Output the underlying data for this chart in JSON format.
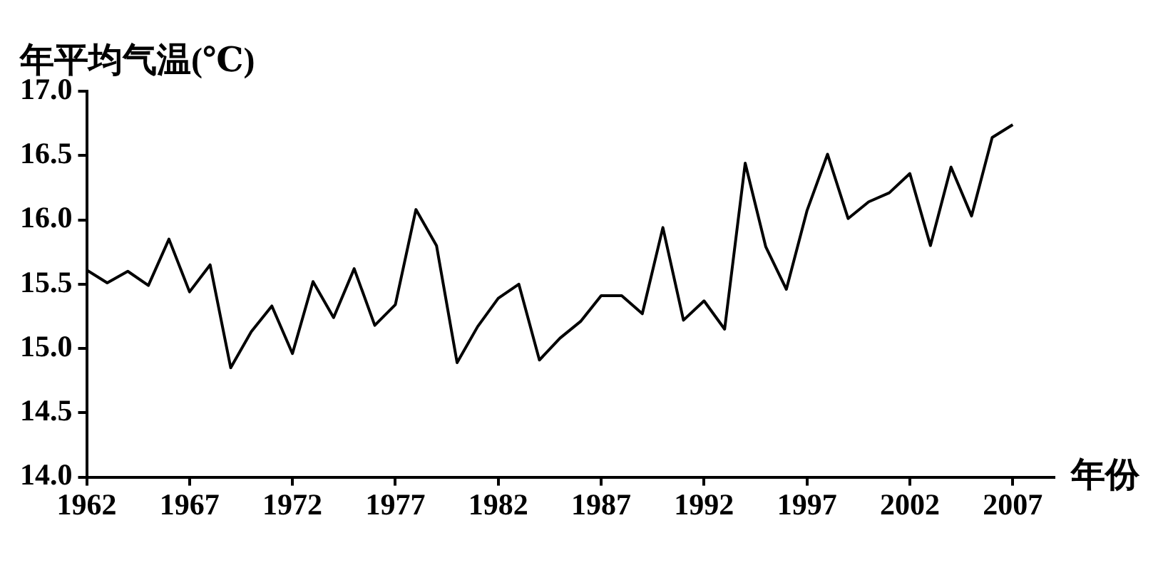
{
  "chart_data": {
    "type": "line",
    "xlabel": "年份",
    "ylabel": "年平均气温(℃)",
    "x": [
      1962,
      1963,
      1964,
      1965,
      1966,
      1967,
      1968,
      1969,
      1970,
      1971,
      1972,
      1973,
      1974,
      1975,
      1976,
      1977,
      1978,
      1979,
      1980,
      1981,
      1982,
      1983,
      1984,
      1985,
      1986,
      1987,
      1988,
      1989,
      1990,
      1991,
      1992,
      1993,
      1994,
      1995,
      1996,
      1997,
      1998,
      1999,
      2000,
      2001,
      2002,
      2003,
      2004,
      2005,
      2006,
      2007
    ],
    "series": [
      {
        "color": "#000000",
        "values": [
          15.61,
          15.51,
          15.6,
          15.49,
          15.85,
          15.44,
          15.65,
          14.85,
          15.13,
          15.33,
          14.96,
          15.52,
          15.24,
          15.62,
          15.18,
          15.34,
          16.08,
          15.8,
          14.89,
          15.17,
          15.39,
          15.5,
          14.91,
          15.08,
          15.21,
          15.41,
          15.41,
          15.27,
          15.94,
          15.22,
          15.37,
          15.15,
          16.44,
          15.79,
          15.46,
          16.07,
          16.51,
          16.01,
          16.14,
          16.21,
          16.36,
          15.8,
          16.41,
          16.03,
          16.64,
          16.74
        ]
      }
    ],
    "xlim": [
      1962,
      2009
    ],
    "xticks": [
      1962,
      1967,
      1972,
      1977,
      1982,
      1987,
      1992,
      1997,
      2002,
      2007
    ],
    "ylim": [
      14,
      17
    ],
    "yticks": [
      {
        "value": 14,
        "label": "14.0"
      },
      {
        "value": 14.5,
        "label": "14.5"
      },
      {
        "value": 15,
        "label": "15.0"
      },
      {
        "value": 15.5,
        "label": "15.5"
      },
      {
        "value": 16,
        "label": "16.0"
      },
      {
        "value": 16.5,
        "label": "16.5"
      },
      {
        "value": 17,
        "label": "17.0"
      }
    ],
    "grid": false,
    "legend": false,
    "marker": "none",
    "line_style": "solid"
  }
}
